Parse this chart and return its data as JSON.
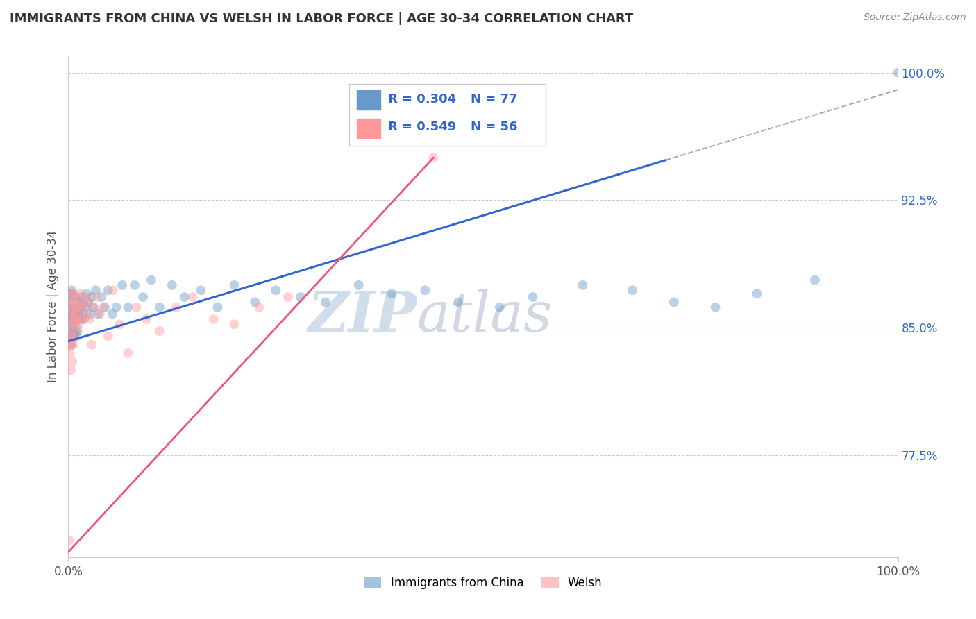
{
  "title": "IMMIGRANTS FROM CHINA VS WELSH IN LABOR FORCE | AGE 30-34 CORRELATION CHART",
  "source": "Source: ZipAtlas.com",
  "ylabel": "In Labor Force | Age 30-34",
  "xlim": [
    0.0,
    1.0
  ],
  "ylim": [
    0.715,
    1.01
  ],
  "ytick_right": [
    0.775,
    0.85,
    0.925,
    1.0
  ],
  "ytick_right_labels": [
    "77.5%",
    "85.0%",
    "92.5%",
    "100.0%"
  ],
  "legend_r1": "0.304",
  "legend_n1": "77",
  "legend_r2": "0.549",
  "legend_n2": "56",
  "color_china": "#6699cc",
  "color_welsh": "#ff9999",
  "color_china_line": "#3366cc",
  "color_welsh_line": "#ee5577",
  "watermark_zip": "ZIP",
  "watermark_atlas": "atlas",
  "china_x": [
    0.001,
    0.002,
    0.002,
    0.003,
    0.003,
    0.003,
    0.004,
    0.004,
    0.004,
    0.005,
    0.005,
    0.005,
    0.006,
    0.006,
    0.006,
    0.007,
    0.007,
    0.007,
    0.008,
    0.008,
    0.008,
    0.009,
    0.009,
    0.01,
    0.01,
    0.011,
    0.011,
    0.012,
    0.012,
    0.013,
    0.014,
    0.015,
    0.016,
    0.017,
    0.018,
    0.019,
    0.02,
    0.022,
    0.024,
    0.026,
    0.028,
    0.03,
    0.033,
    0.036,
    0.04,
    0.044,
    0.048,
    0.053,
    0.058,
    0.065,
    0.072,
    0.08,
    0.09,
    0.1,
    0.11,
    0.125,
    0.14,
    0.16,
    0.18,
    0.2,
    0.225,
    0.25,
    0.28,
    0.31,
    0.35,
    0.39,
    0.43,
    0.47,
    0.52,
    0.56,
    0.62,
    0.68,
    0.73,
    0.78,
    0.83,
    0.9,
    1.0
  ],
  "china_y": [
    0.848,
    0.855,
    0.865,
    0.84,
    0.855,
    0.87,
    0.845,
    0.858,
    0.872,
    0.85,
    0.862,
    0.845,
    0.858,
    0.845,
    0.868,
    0.852,
    0.862,
    0.845,
    0.855,
    0.862,
    0.848,
    0.855,
    0.868,
    0.845,
    0.862,
    0.848,
    0.858,
    0.855,
    0.865,
    0.858,
    0.862,
    0.855,
    0.868,
    0.858,
    0.865,
    0.855,
    0.862,
    0.87,
    0.865,
    0.858,
    0.868,
    0.862,
    0.872,
    0.858,
    0.868,
    0.862,
    0.872,
    0.858,
    0.862,
    0.875,
    0.862,
    0.875,
    0.868,
    0.878,
    0.862,
    0.875,
    0.868,
    0.872,
    0.862,
    0.875,
    0.865,
    0.872,
    0.868,
    0.865,
    0.875,
    0.87,
    0.872,
    0.865,
    0.862,
    0.868,
    0.875,
    0.872,
    0.865,
    0.862,
    0.87,
    0.878,
    1.0
  ],
  "welsh_x": [
    0.001,
    0.001,
    0.002,
    0.002,
    0.003,
    0.003,
    0.003,
    0.004,
    0.004,
    0.004,
    0.005,
    0.005,
    0.005,
    0.006,
    0.006,
    0.006,
    0.007,
    0.007,
    0.007,
    0.008,
    0.008,
    0.009,
    0.009,
    0.01,
    0.01,
    0.011,
    0.012,
    0.013,
    0.014,
    0.015,
    0.016,
    0.017,
    0.018,
    0.02,
    0.022,
    0.024,
    0.026,
    0.028,
    0.031,
    0.034,
    0.038,
    0.043,
    0.048,
    0.054,
    0.062,
    0.072,
    0.082,
    0.094,
    0.11,
    0.13,
    0.15,
    0.175,
    0.2,
    0.23,
    0.265,
    0.44
  ],
  "welsh_y": [
    0.84,
    0.725,
    0.85,
    0.835,
    0.845,
    0.825,
    0.86,
    0.84,
    0.855,
    0.87,
    0.845,
    0.83,
    0.865,
    0.855,
    0.84,
    0.87,
    0.858,
    0.845,
    0.865,
    0.852,
    0.862,
    0.855,
    0.868,
    0.85,
    0.862,
    0.858,
    0.852,
    0.862,
    0.87,
    0.855,
    0.862,
    0.855,
    0.865,
    0.868,
    0.858,
    0.865,
    0.855,
    0.84,
    0.862,
    0.868,
    0.858,
    0.862,
    0.845,
    0.872,
    0.852,
    0.835,
    0.862,
    0.855,
    0.848,
    0.862,
    0.868,
    0.855,
    0.852,
    0.862,
    0.868,
    0.95
  ],
  "china_line_x0": 0.0,
  "china_line_y0": 0.842,
  "china_line_x1": 1.0,
  "china_line_y1": 0.99,
  "china_line_solid_end": 0.72,
  "welsh_line_x0": 0.0,
  "welsh_line_y0": 0.718,
  "welsh_line_x1": 0.44,
  "welsh_line_y1": 0.95
}
